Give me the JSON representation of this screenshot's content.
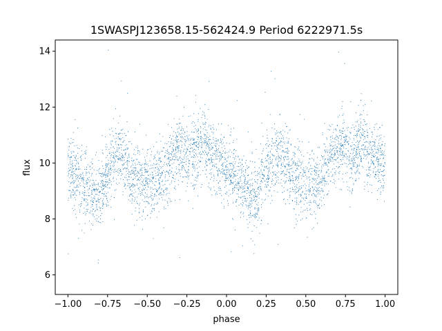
{
  "chart_data": {
    "type": "scatter",
    "title": "1SWASPJ123658.15-562424.9 Period 6222971.5s",
    "xlabel": "phase",
    "ylabel": "flux",
    "xlim": [
      -1.08,
      1.08
    ],
    "ylim": [
      5.3,
      14.4
    ],
    "xticks": [
      -1.0,
      -0.75,
      -0.5,
      -0.25,
      0.0,
      0.25,
      0.5,
      0.75,
      1.0
    ],
    "xtick_labels": [
      "−1.00",
      "−0.75",
      "−0.50",
      "−0.25",
      "0.00",
      "0.25",
      "0.50",
      "0.75",
      "1.00"
    ],
    "yticks": [
      6,
      8,
      10,
      12,
      14
    ],
    "ytick_labels": [
      "6",
      "8",
      "10",
      "12",
      "14"
    ],
    "grid": false,
    "marker_color": "#1f77b4",
    "series": [
      {
        "trend_phase": [
          -1.0,
          -0.95,
          -0.9,
          -0.85,
          -0.8,
          -0.75,
          -0.7,
          -0.65,
          -0.6,
          -0.55,
          -0.5,
          -0.45,
          -0.4,
          -0.35,
          -0.3,
          -0.25,
          -0.2,
          -0.15,
          -0.1,
          -0.05,
          0.0,
          0.05,
          0.1,
          0.15,
          0.2,
          0.25,
          0.3,
          0.35,
          0.4,
          0.45,
          0.5,
          0.55,
          0.6,
          0.65,
          0.7,
          0.75,
          0.8,
          0.85,
          0.9,
          0.95,
          1.0
        ],
        "trend_flux": [
          9.9,
          9.5,
          9.1,
          8.9,
          8.8,
          9.8,
          10.2,
          10.3,
          9.6,
          9.4,
          9.3,
          9.3,
          9.4,
          10.2,
          10.5,
          10.4,
          10.3,
          10.7,
          10.2,
          10.1,
          9.9,
          9.5,
          9.1,
          8.9,
          8.8,
          9.8,
          10.2,
          10.3,
          9.6,
          9.4,
          9.3,
          9.3,
          9.4,
          10.2,
          10.5,
          10.4,
          10.3,
          10.7,
          10.2,
          10.1,
          9.9
        ]
      }
    ]
  }
}
